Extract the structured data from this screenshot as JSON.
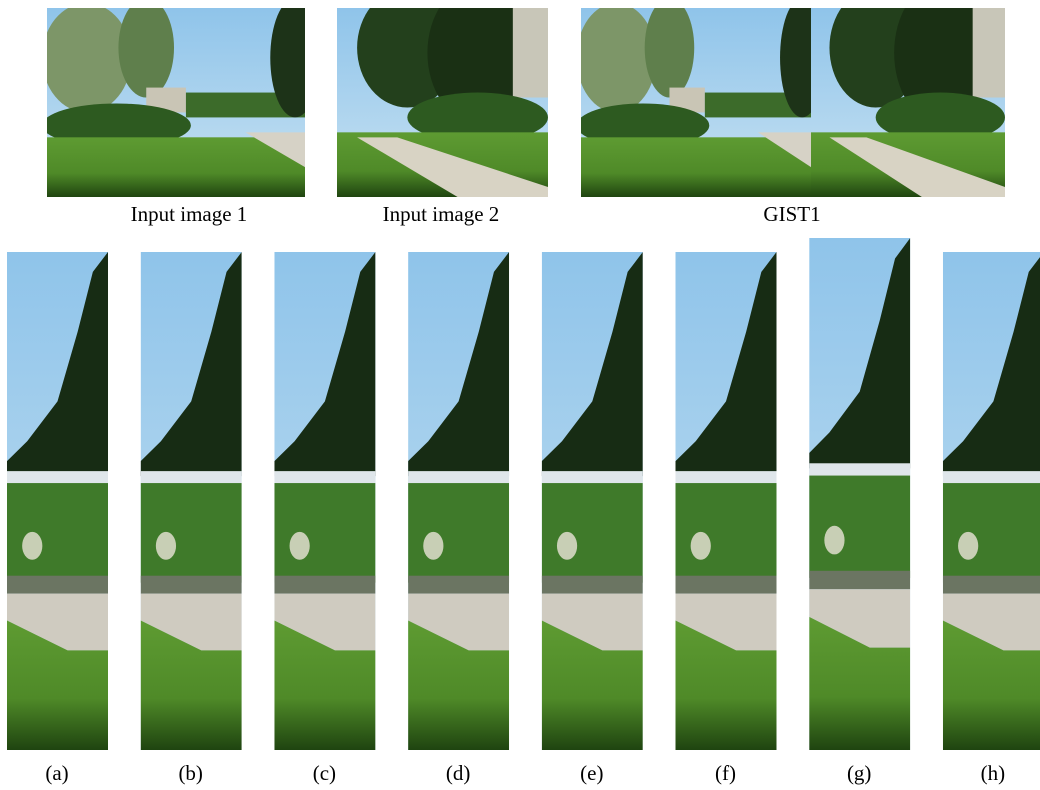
{
  "top_captions": [
    "Input image 1",
    "Input image 2",
    "GIST1"
  ],
  "subfigures": [
    "(a)",
    "(b)",
    "(c)",
    "(d)",
    "(e)",
    "(f)",
    "(g)",
    "(h)"
  ]
}
